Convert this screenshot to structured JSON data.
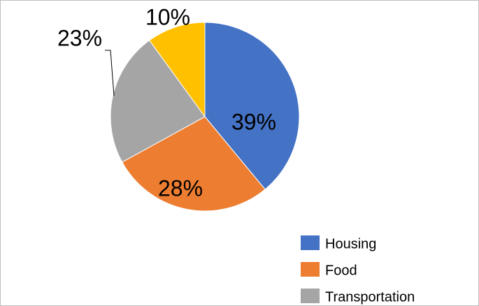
{
  "chart_data": {
    "type": "pie",
    "categories": [
      "Housing",
      "Food",
      "Transportation",
      null
    ],
    "values": [
      39,
      28,
      23,
      10
    ],
    "value_labels": [
      "39%",
      "28%",
      "23%",
      "10%"
    ],
    "colors": [
      "#4472c4",
      "#ed7d31",
      "#a5a5a5",
      "#ffc000"
    ],
    "legend": "bottom-right"
  }
}
